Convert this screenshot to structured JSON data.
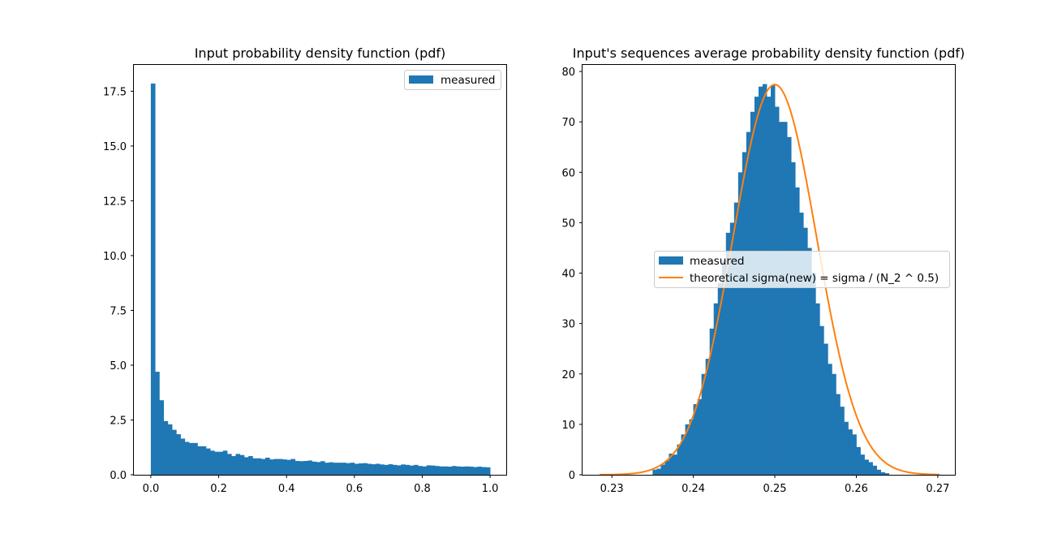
{
  "chart_data": [
    {
      "type": "bar",
      "title": "Input probability density function (pdf)",
      "xlabel": "",
      "ylabel": "",
      "xlim": [
        -0.05,
        1.05
      ],
      "ylim": [
        0,
        18.7
      ],
      "xticks": [
        "0.0",
        "0.2",
        "0.4",
        "0.6",
        "0.8",
        "1.0"
      ],
      "yticks": [
        "0.0",
        "2.5",
        "5.0",
        "7.5",
        "10.0",
        "12.5",
        "15.0",
        "17.5"
      ],
      "grid": false,
      "legend_position": "upper right",
      "series": [
        {
          "name": "measured",
          "kind": "histogram",
          "bin_start": 0.0,
          "bin_width": 0.0125,
          "values": [
            17.85,
            4.7,
            3.4,
            2.45,
            2.3,
            2.05,
            1.85,
            1.65,
            1.5,
            1.45,
            1.45,
            1.3,
            1.3,
            1.2,
            1.1,
            1.05,
            1.05,
            1.1,
            0.95,
            0.85,
            0.95,
            0.9,
            0.8,
            0.85,
            0.75,
            0.75,
            0.72,
            0.78,
            0.7,
            0.72,
            0.72,
            0.7,
            0.68,
            0.72,
            0.63,
            0.62,
            0.63,
            0.65,
            0.6,
            0.58,
            0.62,
            0.55,
            0.57,
            0.55,
            0.55,
            0.55,
            0.53,
            0.55,
            0.5,
            0.52,
            0.53,
            0.5,
            0.48,
            0.5,
            0.47,
            0.45,
            0.48,
            0.45,
            0.43,
            0.47,
            0.45,
            0.42,
            0.45,
            0.4,
            0.38,
            0.43,
            0.42,
            0.4,
            0.38,
            0.38,
            0.37,
            0.4,
            0.38,
            0.37,
            0.38,
            0.37,
            0.35,
            0.37,
            0.35,
            0.34
          ]
        }
      ]
    },
    {
      "type": "bar",
      "title": "Input's sequences average probability density function (pdf)",
      "xlabel": "",
      "ylabel": "",
      "xlim": [
        0.2264,
        0.2722
      ],
      "ylim": [
        0,
        81.3
      ],
      "xticks": [
        "0.23",
        "0.24",
        "0.25",
        "0.26",
        "0.27"
      ],
      "yticks": [
        "0",
        "10",
        "20",
        "30",
        "40",
        "50",
        "60",
        "70",
        "80"
      ],
      "grid": false,
      "legend_position": "center right",
      "series": [
        {
          "name": "measured",
          "kind": "histogram",
          "bin_start": 0.23,
          "bin_width": 0.0005,
          "values": [
            0.0,
            0.0,
            0.0,
            0.0,
            0.0,
            0.0,
            0.0,
            0.0,
            0.0,
            0.0,
            1.0,
            1.2,
            2.0,
            2.8,
            4.2,
            4.0,
            6.0,
            8.0,
            10.0,
            11.0,
            14.0,
            15.0,
            20.0,
            23.0,
            29.0,
            34.0,
            38.0,
            42.5,
            48.0,
            50.0,
            54.0,
            60.0,
            64.0,
            68.0,
            72.0,
            75.0,
            77.0,
            77.5,
            75.0,
            77.3,
            73.0,
            70.0,
            70.0,
            67.0,
            62.0,
            57.0,
            52.0,
            49.0,
            45.0,
            40.0,
            34.0,
            29.5,
            26.0,
            22.0,
            20.0,
            16.0,
            13.5,
            10.5,
            9.0,
            8.0,
            5.5,
            4.0,
            3.0,
            2.5,
            1.8,
            1.0,
            0.5,
            0.3
          ]
        },
        {
          "name": "theoretical sigma(new) = sigma / (N_2 ^ 0.5)",
          "kind": "line",
          "mu": 0.25,
          "sigma": 0.00515,
          "peak": 77.4,
          "x_start": 0.2285,
          "x_end": 0.2702
        }
      ]
    }
  ],
  "colors": {
    "bar": "#1f77b4",
    "line": "#ff7f0e",
    "axis": "#000000",
    "legend_edge": "#cccccc"
  }
}
